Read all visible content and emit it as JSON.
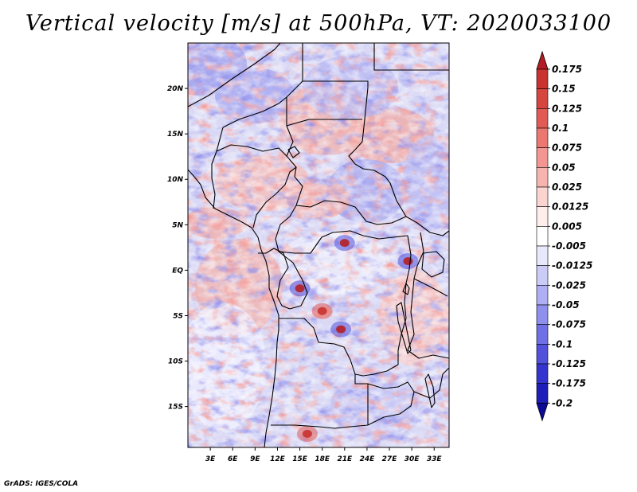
{
  "chart_data": {
    "type": "heatmap",
    "title": "Vertical velocity [m/s] at 500hPa, VT: 2020033100",
    "variable": "Vertical velocity",
    "units": "m/s",
    "level": "500hPa",
    "valid_time": "2020033100",
    "x_ticks": [
      "3E",
      "6E",
      "9E",
      "12E",
      "15E",
      "18E",
      "21E",
      "24E",
      "27E",
      "30E",
      "33E"
    ],
    "x_tick_values": [
      3,
      6,
      9,
      12,
      15,
      18,
      21,
      24,
      27,
      30,
      33
    ],
    "xlim": [
      0,
      35
    ],
    "y_ticks": [
      "20N",
      "15N",
      "10N",
      "5N",
      "EQ",
      "5S",
      "10S",
      "15S"
    ],
    "y_tick_values": [
      20,
      15,
      10,
      5,
      0,
      -5,
      -10,
      -15
    ],
    "ylim": [
      -19.5,
      25
    ],
    "colorbar": {
      "labels": [
        "0.175",
        "0.15",
        "0.125",
        "0.1",
        "0.075",
        "0.05",
        "0.025",
        "0.0125",
        "0.005",
        "-0.005",
        "-0.0125",
        "-0.025",
        "-0.05",
        "-0.075",
        "-0.1",
        "-0.125",
        "-0.175",
        "-0.2"
      ],
      "colors": [
        "#b31e25",
        "#c83330",
        "#d7453f",
        "#e25a54",
        "#ec7670",
        "#f39590",
        "#f7b4af",
        "#fbd4d0",
        "#fdeeec",
        "#ffffff",
        "#e8e8fc",
        "#cbcbf8",
        "#aeaef4",
        "#8f8fee",
        "#7070e6",
        "#5151dc",
        "#3434ce",
        "#1e1eb8",
        "#0b0b96"
      ],
      "extend": "both"
    },
    "features": [
      {
        "name": "strong ascent cluster",
        "lon": 15,
        "lat": -2,
        "sign": "negative"
      },
      {
        "name": "strong ascent cluster",
        "lon": 21,
        "lat": 3,
        "sign": "negative"
      },
      {
        "name": "strong ascent cluster",
        "lon": 29.5,
        "lat": 1,
        "sign": "negative"
      },
      {
        "name": "strong ascent cluster",
        "lon": 20.5,
        "lat": -6.5,
        "sign": "negative"
      },
      {
        "name": "subsidence band",
        "lon": 18,
        "lat": -4.5,
        "sign": "positive"
      },
      {
        "name": "subsidence area",
        "lon": 16,
        "lat": -18,
        "sign": "positive"
      }
    ]
  },
  "footer": {
    "credit": "GrADS: IGES/COLA"
  }
}
